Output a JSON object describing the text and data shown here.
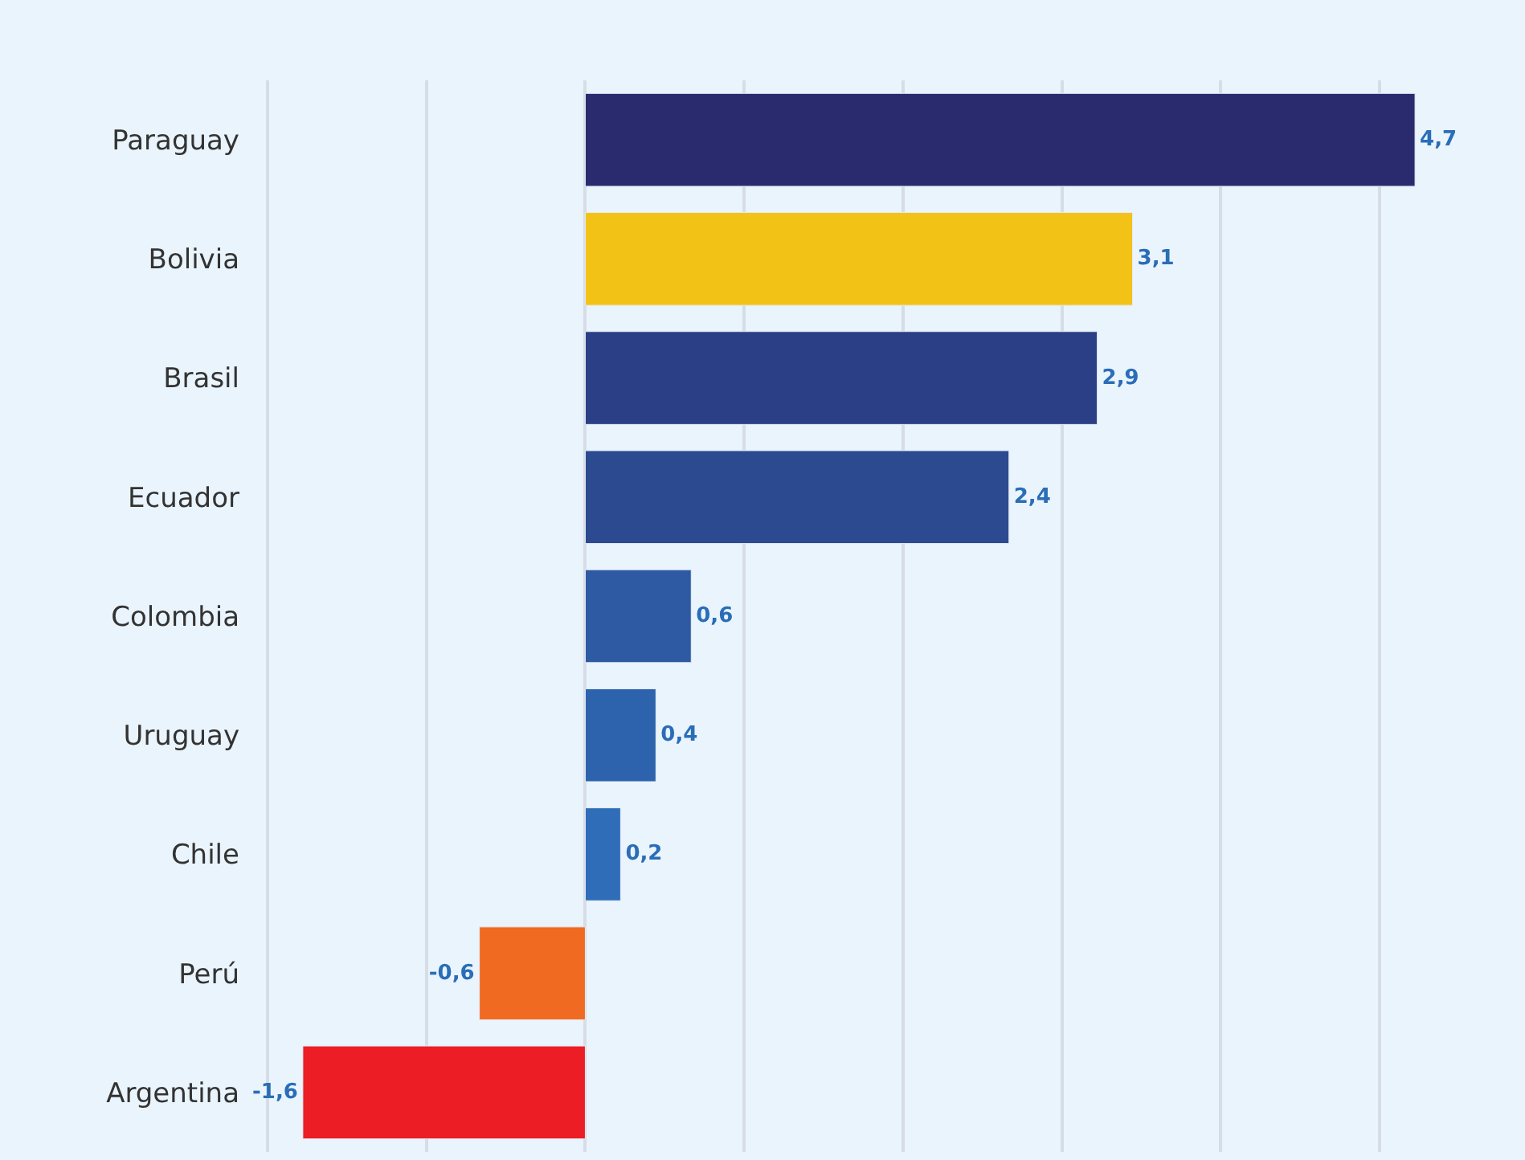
{
  "chart_data": {
    "type": "bar",
    "orientation": "horizontal",
    "categories": [
      "Paraguay",
      "Bolivia",
      "Brasil",
      "Ecuador",
      "Colombia",
      "Uruguay",
      "Chile",
      "Perú",
      "Argentina"
    ],
    "values": [
      4.7,
      3.1,
      2.9,
      2.4,
      0.6,
      0.4,
      0.2,
      -0.6,
      -1.6
    ],
    "value_labels": [
      "4,7",
      "3,1",
      "2,9",
      "2,4",
      "0,6",
      "0,4",
      "0,2",
      "-0,6",
      "-1,6"
    ],
    "colors": [
      "#2a2a6e",
      "#f2c316",
      "#2b3f86",
      "#2b4a90",
      "#2d5aa2",
      "#2d62ad",
      "#2f6db8",
      "#f06a22",
      "#ec1d24"
    ],
    "xticks": [
      {
        "value": -1.8,
        "label": null
      },
      {
        "value": -0.9,
        "label": null
      },
      {
        "value": 0,
        "label": null
      },
      {
        "value": 0.9,
        "label": null
      },
      {
        "value": 1.8,
        "label": null
      },
      {
        "value": 2.7,
        "label": null
      },
      {
        "value": 3.6,
        "label": null
      },
      {
        "value": 4.5,
        "label": null
      }
    ],
    "grid": "x",
    "tick_labels": "y",
    "legend": false
  }
}
